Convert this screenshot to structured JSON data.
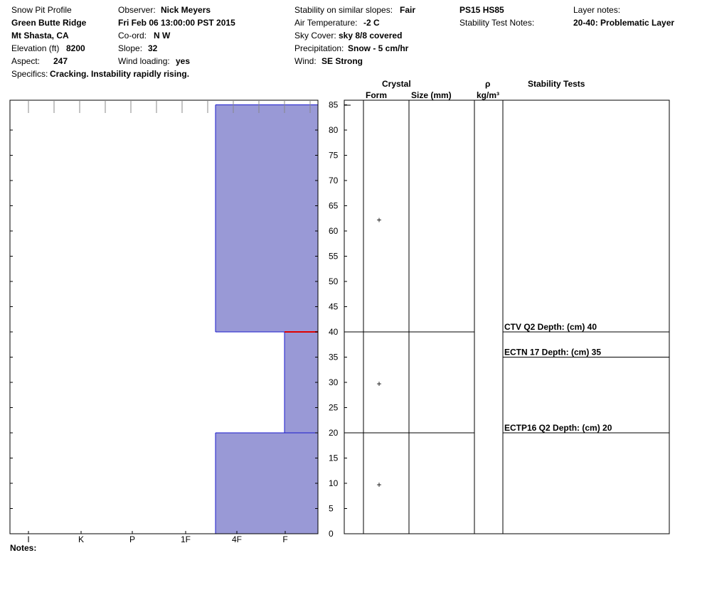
{
  "header": {
    "title": "Snow Pit Profile",
    "location": "Green Butte Ridge",
    "region": "Mt Shasta, CA",
    "elevation_label": "Elevation (ft)",
    "elevation": "8200",
    "aspect_label": "Aspect:",
    "aspect": "247",
    "specifics_label": "Specifics:",
    "specifics": "Cracking. Instability rapidly rising.",
    "observer_label": "Observer:",
    "observer": "Nick Meyers",
    "datetime": "Fri Feb 06 13:00:00 PST 2015",
    "coord_label": "Co-ord:",
    "coord": "N  W",
    "slope_label": "Slope:",
    "slope": "32",
    "wind_loading_label": "Wind loading:",
    "wind_loading": "yes",
    "stability_label": "Stability on similar slopes:",
    "stability": "Fair",
    "air_temp_label": "Air Temperature:",
    "air_temp": "-2 C",
    "sky_label": "Sky Cover:",
    "sky": "sky 8/8 covered",
    "precip_label": "Precipitation:",
    "precip": "Snow - 5 cm/hr",
    "wind_label": "Wind:",
    "wind": "SE Strong",
    "ps_hs": "PS15 HS85",
    "stability_notes_label": "Stability Test Notes:",
    "layer_notes_label": "Layer notes:",
    "layer_notes": "20-40: Problematic Layer",
    "notes_label": "Notes:"
  },
  "columns": {
    "crystal": "Crystal",
    "form": "Form",
    "size": "Size (mm)",
    "rho": "ρ",
    "density_unit": "kg/m³",
    "stability_tests": "Stability Tests"
  },
  "chart_data": {
    "type": "bar",
    "orientation": "horizontal",
    "y_axis": {
      "label": "",
      "range": [
        0,
        85
      ],
      "ticks": [
        0,
        5,
        10,
        15,
        20,
        25,
        30,
        35,
        40,
        45,
        50,
        55,
        60,
        65,
        70,
        75,
        80,
        85
      ]
    },
    "hardness_scale": [
      "I",
      "K",
      "P",
      "1F",
      "4F",
      "F"
    ],
    "layers": [
      {
        "bottom": 0,
        "top": 20,
        "hardness": "4F",
        "form_symbol": "+"
      },
      {
        "bottom": 20,
        "top": 40,
        "hardness": "F",
        "form_symbol": "+"
      },
      {
        "bottom": 40,
        "top": 85,
        "hardness": "4F",
        "form_symbol": "+"
      }
    ],
    "problem_boundary": 40,
    "stability_tests": [
      {
        "depth": 40,
        "label": "CTV Q2 Depth: (cm) 40"
      },
      {
        "depth": 35,
        "label": "ECTN 17   Depth: (cm) 35"
      },
      {
        "depth": 20,
        "label": "ECTP16 Q2 Depth: (cm) 20"
      }
    ],
    "colors": {
      "fill": "#9999d6",
      "edge": "#1a1acc",
      "problem": "#e00000"
    }
  }
}
